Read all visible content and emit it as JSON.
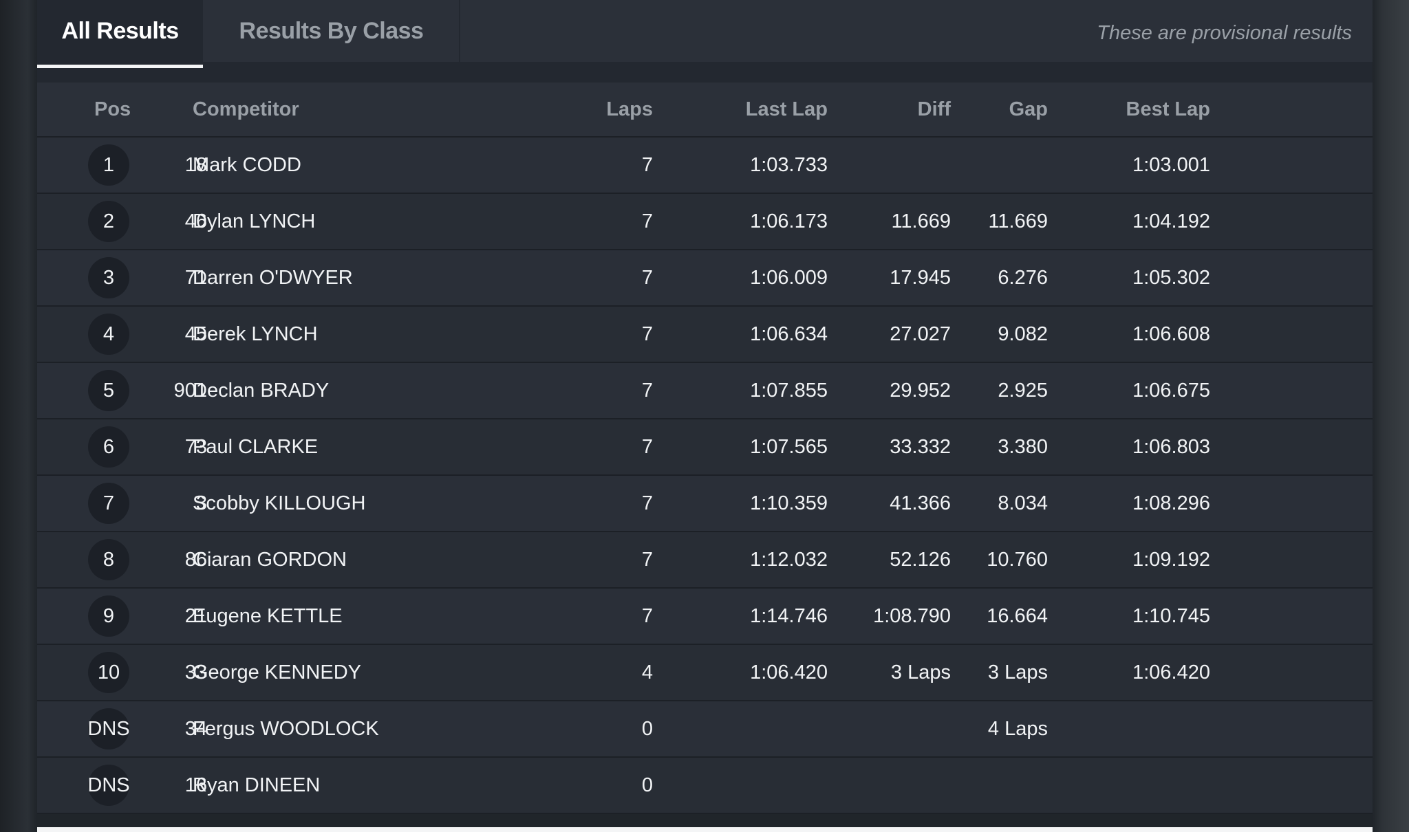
{
  "tabs": [
    {
      "label": "All Results",
      "active": true
    },
    {
      "label": "Results By Class",
      "active": false
    }
  ],
  "notice": "These are provisional results",
  "columns": {
    "pos": "Pos",
    "competitor": "Competitor",
    "laps": "Laps",
    "last_lap": "Last Lap",
    "diff": "Diff",
    "gap": "Gap",
    "best_lap": "Best Lap"
  },
  "rows": [
    {
      "pos": "1",
      "num": "18",
      "name": "Mark CODD",
      "laps": "7",
      "last_lap": "1:03.733",
      "diff": "",
      "gap": "",
      "best_lap": "1:03.001"
    },
    {
      "pos": "2",
      "num": "46",
      "name": "Dylan LYNCH",
      "laps": "7",
      "last_lap": "1:06.173",
      "diff": "11.669",
      "gap": "11.669",
      "best_lap": "1:04.192"
    },
    {
      "pos": "3",
      "num": "71",
      "name": "Darren O'DWYER",
      "laps": "7",
      "last_lap": "1:06.009",
      "diff": "17.945",
      "gap": "6.276",
      "best_lap": "1:05.302"
    },
    {
      "pos": "4",
      "num": "45",
      "name": "Derek LYNCH",
      "laps": "7",
      "last_lap": "1:06.634",
      "diff": "27.027",
      "gap": "9.082",
      "best_lap": "1:06.608"
    },
    {
      "pos": "5",
      "num": "901",
      "name": "Declan BRADY",
      "laps": "7",
      "last_lap": "1:07.855",
      "diff": "29.952",
      "gap": "2.925",
      "best_lap": "1:06.675"
    },
    {
      "pos": "6",
      "num": "73",
      "name": "Paul CLARKE",
      "laps": "7",
      "last_lap": "1:07.565",
      "diff": "33.332",
      "gap": "3.380",
      "best_lap": "1:06.803"
    },
    {
      "pos": "7",
      "num": "3",
      "name": "Scobby KILLOUGH",
      "laps": "7",
      "last_lap": "1:10.359",
      "diff": "41.366",
      "gap": "8.034",
      "best_lap": "1:08.296"
    },
    {
      "pos": "8",
      "num": "86",
      "name": "Ciaran GORDON",
      "laps": "7",
      "last_lap": "1:12.032",
      "diff": "52.126",
      "gap": "10.760",
      "best_lap": "1:09.192"
    },
    {
      "pos": "9",
      "num": "21",
      "name": "Eugene KETTLE",
      "laps": "7",
      "last_lap": "1:14.746",
      "diff": "1:08.790",
      "gap": "16.664",
      "best_lap": "1:10.745"
    },
    {
      "pos": "10",
      "num": "33",
      "name": "George KENNEDY",
      "laps": "4",
      "last_lap": "1:06.420",
      "diff": "3 Laps",
      "gap": "3 Laps",
      "best_lap": "1:06.420"
    },
    {
      "pos": "DNS",
      "num": "34",
      "name": "Fergus WOODLOCK",
      "laps": "0",
      "last_lap": "",
      "diff": "",
      "gap": "4 Laps",
      "best_lap": ""
    },
    {
      "pos": "DNS",
      "num": "16",
      "name": "Ryan DINEEN",
      "laps": "0",
      "last_lap": "",
      "diff": "",
      "gap": "",
      "best_lap": ""
    }
  ]
}
